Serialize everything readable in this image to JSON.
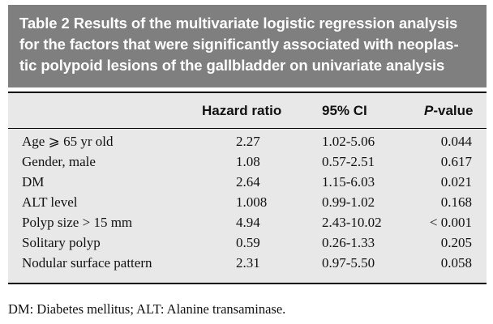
{
  "caption": {
    "lines": [
      "Table 2  Results of the multivariate logistic regression analysis",
      "for the factors that were significantly associated with neoplas-",
      "tic polypoid lesions of the gallbladder on univariate analysis"
    ]
  },
  "table": {
    "headers": {
      "hazard_ratio": "Hazard ratio",
      "ci": "95% CI",
      "p_value_italic": "P",
      "p_value_rest": "-value"
    },
    "rows": [
      {
        "label": "Age ⩾ 65 yr old",
        "hr": "2.27",
        "ci": "1.02-5.06",
        "p": "0.044"
      },
      {
        "label": "Gender, male",
        "hr": "1.08",
        "ci": "0.57-2.51",
        "p": "0.617"
      },
      {
        "label": "DM",
        "hr": "2.64",
        "ci": "1.15-6.03",
        "p": "0.021"
      },
      {
        "label": "ALT level",
        "hr": "1.008",
        "ci": "0.99-1.02",
        "p": "0.168"
      },
      {
        "label": "Polyp size > 15 mm",
        "hr": "4.94",
        "ci": "2.43-10.02",
        "p": "< 0.001"
      },
      {
        "label": "Solitary polyp",
        "hr": "0.59",
        "ci": "0.26-1.33",
        "p": "0.205"
      },
      {
        "label": "Nodular surface pattern",
        "hr": "2.31",
        "ci": "0.97-5.50",
        "p": "0.058"
      }
    ]
  },
  "footnote": "DM: Diabetes mellitus; ALT: Alanine transaminase."
}
